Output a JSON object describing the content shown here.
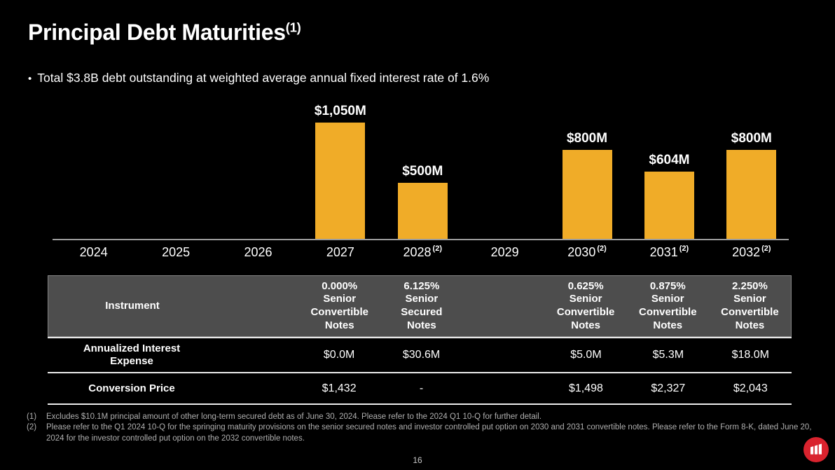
{
  "slide": {
    "title": "Principal Debt Maturities",
    "title_superscript": "(1)",
    "bullet_marker": "•",
    "bullet": "Total $3.8B debt outstanding at weighted average annual fixed interest rate of 1.6%",
    "page_number": "16"
  },
  "colors": {
    "background": "#000000",
    "bar": "#F0AC28",
    "axis_line": "#9C9C9C",
    "table_header_bg": "#4D4D4D",
    "table_divider": "#ECECEC",
    "footnote_text": "#AFAFAF",
    "page_number_text": "#C8C8C8",
    "logo_red": "#D9232E",
    "text": "#FFFFFF"
  },
  "chart_data": {
    "type": "bar",
    "categories": [
      "2024",
      "2025",
      "2026",
      "2027",
      "2028",
      "2029",
      "2030",
      "2031",
      "2032"
    ],
    "category_superscripts": [
      "",
      "",
      "",
      "",
      "(2)",
      "",
      "(2)",
      "(2)",
      "(2)"
    ],
    "values": [
      0,
      0,
      0,
      1050,
      500,
      0,
      800,
      604,
      800
    ],
    "bar_labels": [
      "",
      "",
      "",
      "$1,050M",
      "$500M",
      "",
      "$800M",
      "$604M",
      "$800M"
    ],
    "unit": "$M",
    "ylim": [
      0,
      1100
    ],
    "grid": false,
    "legend": "none"
  },
  "table": {
    "header": {
      "label": "Instrument",
      "cells": [
        "",
        "0.000%\nSenior\nConvertible\nNotes",
        "6.125%\nSenior\nSecured\nNotes",
        "",
        "0.625%\nSenior\nConvertible\nNotes",
        "0.875%\nSenior\nConvertible\nNotes",
        "2.250%\nSenior\nConvertible\nNotes"
      ]
    },
    "rows": [
      {
        "label": "Annualized Interest Expense",
        "cells": [
          "",
          "$0.0M",
          "$30.6M",
          "",
          "$5.0M",
          "$5.3M",
          "$18.0M"
        ]
      },
      {
        "label": "Conversion Price",
        "cells": [
          "",
          "$1,432",
          "-",
          "",
          "$1,498",
          "$2,327",
          "$2,043"
        ]
      }
    ]
  },
  "footnotes": [
    {
      "marker": "(1)",
      "text": "Excludes $10.1M principal amount of other long-term secured debt as of June 30, 2024. Please refer to the 2024 Q1 10-Q for further detail."
    },
    {
      "marker": "(2)",
      "text": "Please refer to the Q1 2024 10-Q for the springing maturity provisions on the senior secured notes and investor controlled put option on 2030 and 2031 convertible notes. Please refer to the Form 8-K, dated June 20, 2024 for the investor controlled put option on the 2032 convertible notes."
    }
  ]
}
